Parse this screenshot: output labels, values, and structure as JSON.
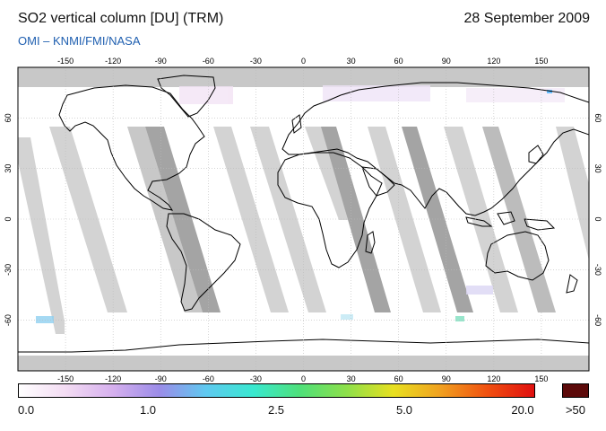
{
  "header": {
    "title": "SO2 vertical column [DU] (TRM)",
    "date": "28 September 2009",
    "credit": "OMI  –  KNMI/FMI/NASA"
  },
  "map": {
    "projection": "equirectangular",
    "lon_ticks": [
      "-150",
      "-120",
      "-90",
      "-60",
      "-30",
      "0",
      "30",
      "60",
      "90",
      "120",
      "150"
    ],
    "lat_ticks": [
      "60",
      "30",
      "0",
      "-30",
      "-60"
    ],
    "colors": {
      "no_data_swath": "#d3d3d3",
      "land_gap_swath": "#9c9c9c",
      "polar_no_data": "#c8c8c8",
      "coastline": "#000000"
    }
  },
  "colorbar": {
    "labels": [
      "0.0",
      "1.0",
      "2.5",
      "5.0",
      "20.0",
      ">50"
    ],
    "gradient": [
      "#ffffff",
      "#f3dcf3",
      "#d6b0ee",
      "#9b8ce8",
      "#5fc9f0",
      "#39e8d0",
      "#4fe07a",
      "#8ee04a",
      "#e8e020",
      "#f0a020",
      "#f05010",
      "#e01010"
    ],
    "max_color": "#5c0a0a"
  }
}
